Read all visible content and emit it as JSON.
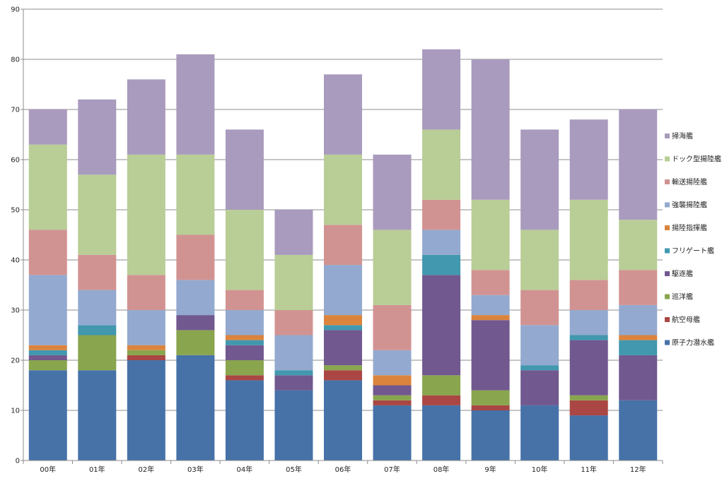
{
  "chart_data": {
    "type": "bar",
    "stacked": true,
    "categories": [
      "00年",
      "01年",
      "02年",
      "03年",
      "04年",
      "05年",
      "06年",
      "07年",
      "08年",
      "9年",
      "10年",
      "11年",
      "12年"
    ],
    "ylim": [
      0,
      90
    ],
    "yticks": [
      0,
      10,
      20,
      30,
      40,
      50,
      60,
      70,
      80,
      90
    ],
    "grid": true,
    "legend_position": "right",
    "series": [
      {
        "name": "原子力潜水艦",
        "color": "#4672a8",
        "values": [
          18,
          18,
          20,
          21,
          16,
          14,
          16,
          11,
          11,
          10,
          11,
          9,
          12
        ]
      },
      {
        "name": "航空母艦",
        "color": "#aa4643",
        "values": [
          0,
          0,
          1,
          0,
          1,
          0,
          2,
          1,
          2,
          1,
          0,
          3,
          0
        ]
      },
      {
        "name": "巡洋艦",
        "color": "#89a54e",
        "values": [
          2,
          7,
          1,
          5,
          3,
          0,
          1,
          1,
          4,
          3,
          0,
          1,
          0
        ]
      },
      {
        "name": "駆逐艦",
        "color": "#71588f",
        "values": [
          1,
          0,
          0,
          3,
          3,
          3,
          7,
          2,
          20,
          14,
          7,
          11,
          9
        ]
      },
      {
        "name": "フリゲート艦",
        "color": "#4198af",
        "values": [
          1,
          2,
          0,
          0,
          1,
          1,
          1,
          0,
          4,
          0,
          1,
          1,
          3
        ]
      },
      {
        "name": "揚陸指揮艦",
        "color": "#db843d",
        "values": [
          1,
          0,
          1,
          0,
          1,
          0,
          2,
          2,
          0,
          1,
          0,
          0,
          1
        ]
      },
      {
        "name": "強襲揚陸艦",
        "color": "#93a9cf",
        "values": [
          14,
          7,
          7,
          7,
          5,
          7,
          10,
          5,
          5,
          4,
          8,
          5,
          6
        ]
      },
      {
        "name": "輸送揚陸艦",
        "color": "#d19392",
        "values": [
          9,
          7,
          7,
          9,
          4,
          5,
          8,
          9,
          6,
          5,
          7,
          6,
          7
        ]
      },
      {
        "name": "ドック型揚陸艦",
        "color": "#b9cd96",
        "values": [
          17,
          16,
          24,
          16,
          16,
          11,
          14,
          15,
          14,
          14,
          12,
          16,
          10
        ]
      },
      {
        "name": "掃海艦",
        "color": "#a99bbd",
        "values": [
          7,
          15,
          15,
          20,
          16,
          9,
          16,
          15,
          16,
          28,
          20,
          16,
          22
        ]
      }
    ]
  }
}
